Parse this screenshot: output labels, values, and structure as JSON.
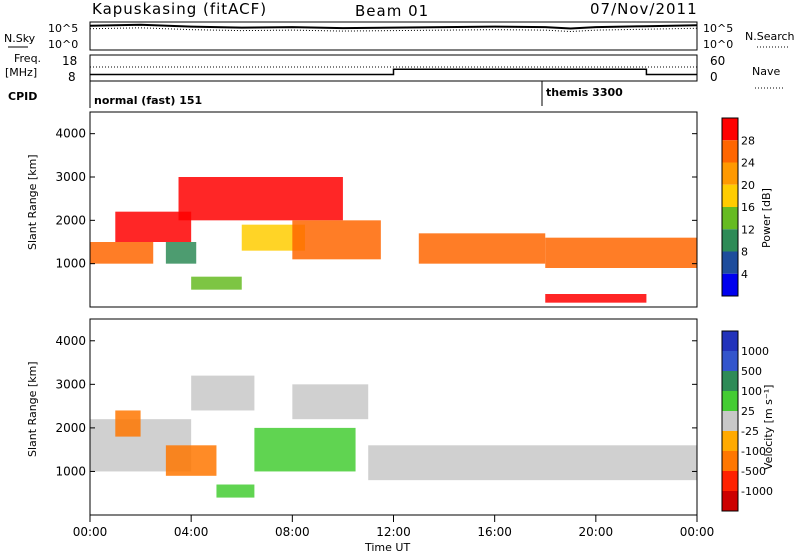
{
  "header": {
    "station": "Kapuskasing (fitACF)",
    "beam": "Beam 01",
    "date": "07/Nov/2011"
  },
  "left_labels": {
    "nsky": "N.Sky",
    "freq_line1": "Freq.",
    "freq_line2": "[MHz]",
    "cpid": "CPID"
  },
  "right_labels": {
    "nsearch": "N.Search",
    "nave": "Nave"
  },
  "cpid_labels": {
    "first": "normal (fast) 151",
    "second": "themis 3300"
  },
  "time_axis": {
    "label": "Time UT",
    "ticks": [
      "00:00",
      "04:00",
      "08:00",
      "12:00",
      "16:00",
      "20:00",
      "00:00"
    ]
  },
  "power_colorbar": {
    "label": "Power [dB]",
    "ticks": [
      "28",
      "24",
      "20",
      "16",
      "12",
      "8",
      "4"
    ],
    "colors": [
      "#ff0000",
      "#ff6600",
      "#ff9900",
      "#ffcc00",
      "#66bb22",
      "#2e8b57",
      "#1e4d9c",
      "#0000ee"
    ]
  },
  "velocity_colorbar": {
    "label": "Velocity [m s⁻¹]",
    "ticks": [
      "1000",
      "500",
      "100",
      "25",
      "-25",
      "-100",
      "-500",
      "-1000"
    ],
    "colors": [
      "#2233bb",
      "#3355cc",
      "#2e8b57",
      "#44cc33",
      "#c8c8c8",
      "#ffaa00",
      "#ff7700",
      "#ff2200",
      "#cc0000"
    ]
  },
  "chart_data": [
    {
      "type": "line",
      "panel": "noise",
      "ylabels": [
        "10^5",
        "10^0"
      ],
      "right_ylabels": [
        "10^5",
        "10^0"
      ],
      "x_hours": [
        0,
        2,
        4,
        6,
        8,
        10,
        12,
        14,
        16,
        18,
        19,
        20,
        22,
        24
      ],
      "y_log": [
        5.2,
        5.4,
        5.0,
        4.8,
        4.9,
        4.7,
        4.8,
        4.9,
        5.0,
        4.9,
        4.6,
        4.9,
        5.1,
        5.3
      ]
    },
    {
      "type": "line",
      "panel": "frequency",
      "ylabels": [
        "18",
        "8"
      ],
      "right_ylabels": [
        "60",
        "0"
      ],
      "ylim": [
        8,
        18
      ],
      "x_hours": [
        0,
        12,
        12,
        22,
        22,
        24
      ],
      "freq_mhz": [
        10.5,
        10.5,
        12.5,
        12.5,
        10.5,
        10.5
      ]
    },
    {
      "type": "heatmap",
      "panel": "power",
      "ylabel": "Slant Range [km]",
      "yticks": [
        "1000",
        "2000",
        "3000",
        "4000"
      ],
      "ylim": [
        0,
        4500
      ],
      "xlim_hours": [
        0,
        24
      ],
      "bands": [
        {
          "x0": 0,
          "x1": 2.5,
          "y0": 1000,
          "y1": 1500,
          "level": 1
        },
        {
          "x0": 1,
          "x1": 4,
          "y0": 1500,
          "y1": 2200,
          "level": 0
        },
        {
          "x0": 3,
          "x1": 4.2,
          "y0": 1000,
          "y1": 1500,
          "level": 5
        },
        {
          "x0": 4,
          "x1": 6,
          "y0": 400,
          "y1": 700,
          "level": 4
        },
        {
          "x0": 6,
          "x1": 8.5,
          "y0": 1300,
          "y1": 1900,
          "level": 3
        },
        {
          "x0": 3.5,
          "x1": 10,
          "y0": 2000,
          "y1": 3000,
          "level": 0
        },
        {
          "x0": 8,
          "x1": 11.5,
          "y0": 1100,
          "y1": 2000,
          "level": 1
        },
        {
          "x0": 13,
          "x1": 18,
          "y0": 1000,
          "y1": 1700,
          "level": 1
        },
        {
          "x0": 18,
          "x1": 24,
          "y0": 900,
          "y1": 1600,
          "level": 1
        },
        {
          "x0": 18,
          "x1": 22,
          "y0": 100,
          "y1": 300,
          "level": 0
        }
      ]
    },
    {
      "type": "heatmap",
      "panel": "velocity",
      "ylabel": "Slant Range [km]",
      "yticks": [
        "1000",
        "2000",
        "3000",
        "4000"
      ],
      "ylim": [
        0,
        4500
      ],
      "xlim_hours": [
        0,
        24
      ],
      "bands": [
        {
          "x0": 0,
          "x1": 4,
          "y0": 1000,
          "y1": 2200,
          "level": 4
        },
        {
          "x0": 3,
          "x1": 5,
          "y0": 900,
          "y1": 1600,
          "level": 6
        },
        {
          "x0": 1,
          "x1": 2,
          "y0": 1800,
          "y1": 2400,
          "level": 6
        },
        {
          "x0": 4,
          "x1": 6.5,
          "y0": 2400,
          "y1": 3200,
          "level": 4
        },
        {
          "x0": 6.5,
          "x1": 10.5,
          "y0": 1000,
          "y1": 2000,
          "level": 3
        },
        {
          "x0": 8,
          "x1": 11,
          "y0": 2200,
          "y1": 3000,
          "level": 4
        },
        {
          "x0": 11,
          "x1": 24,
          "y0": 800,
          "y1": 1600,
          "level": 4
        },
        {
          "x0": 5,
          "x1": 6.5,
          "y0": 400,
          "y1": 700,
          "level": 3
        }
      ]
    }
  ]
}
